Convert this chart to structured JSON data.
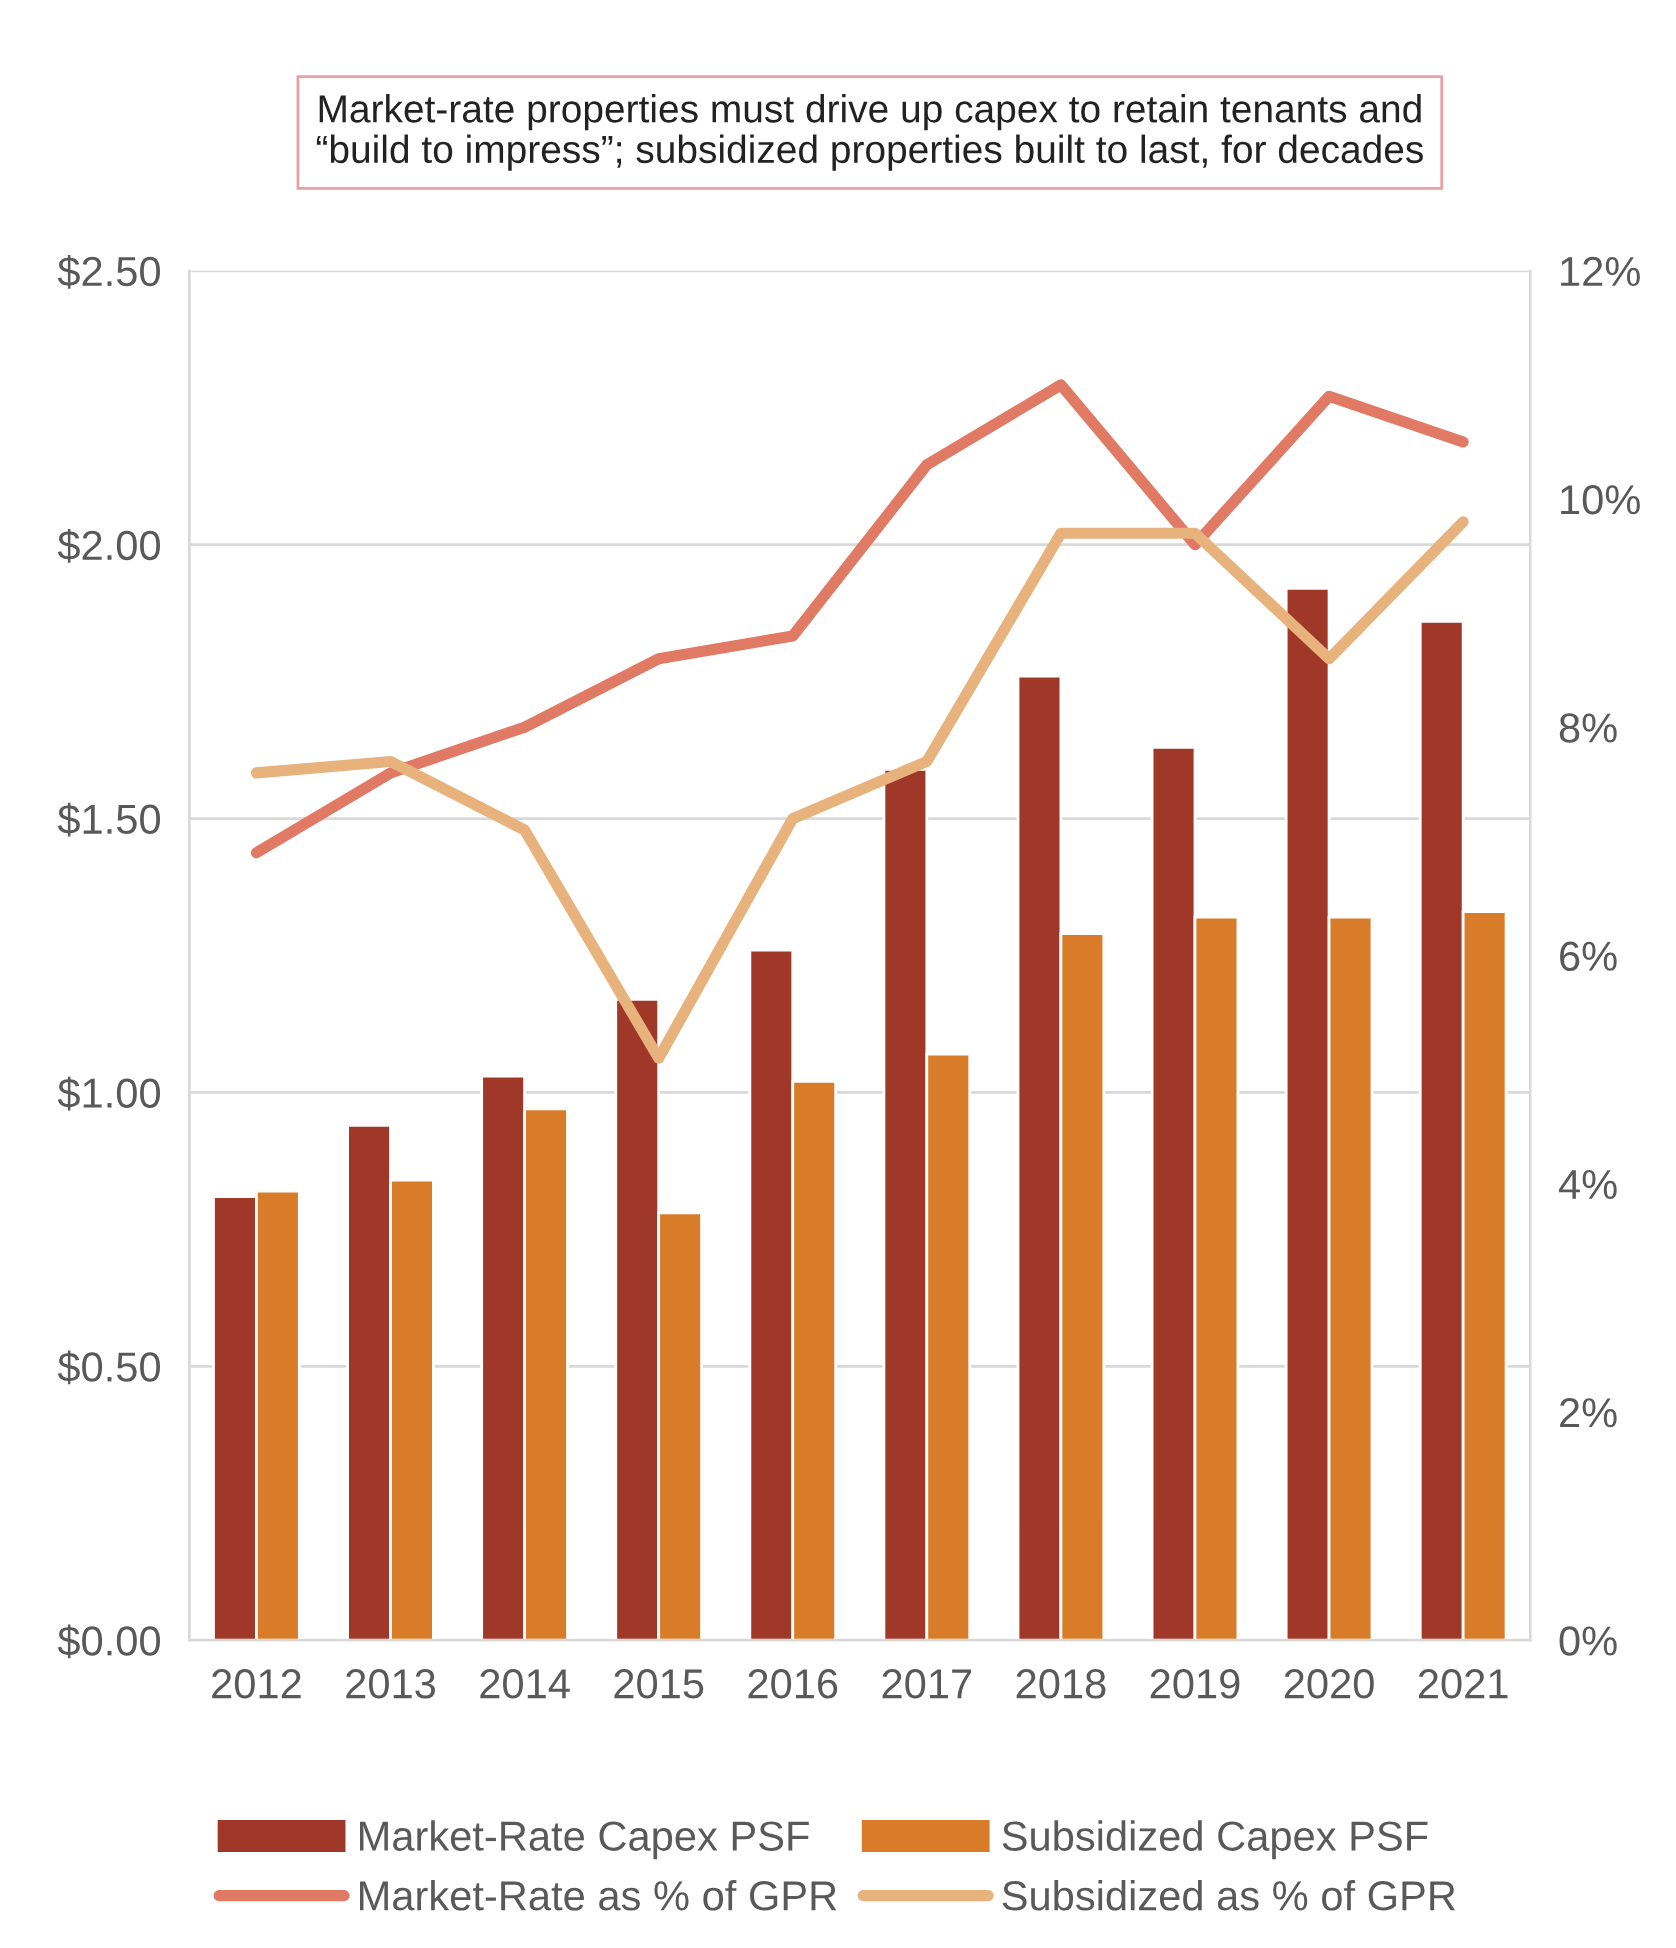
{
  "chart_data": {
    "type": "bar",
    "title": "Market-rate properties must drive up capex to retain tenants and “build to impress”; subsidized properties built to last, for decades",
    "categories": [
      "2012",
      "2013",
      "2014",
      "2015",
      "2016",
      "2017",
      "2018",
      "2019",
      "2020",
      "2021"
    ],
    "series": [
      {
        "name": "Market-Rate Capex PSF",
        "color": "#a0382a",
        "values": [
          0.81,
          0.94,
          1.03,
          1.17,
          1.26,
          1.59,
          1.76,
          1.63,
          1.92,
          1.86
        ]
      },
      {
        "name": "Subsidized Capex PSF",
        "color": "#d87c2a",
        "values": [
          0.82,
          0.84,
          0.97,
          0.78,
          1.02,
          1.07,
          1.29,
          1.32,
          1.32,
          1.33
        ]
      },
      {
        "name": "Market-Rate as % of GPR",
        "type": "line",
        "axis": "y2",
        "color": "#e07a64",
        "values": [
          6.9,
          7.6,
          8.0,
          8.6,
          8.8,
          10.3,
          11.0,
          9.6,
          10.9,
          10.5
        ]
      },
      {
        "name": "Subsidized as % of GPR",
        "type": "line",
        "axis": "y2",
        "color": "#e8b27c",
        "values": [
          7.6,
          7.7,
          7.1,
          5.1,
          7.2,
          7.7,
          9.7,
          9.7,
          8.6,
          9.8
        ]
      }
    ],
    "ylim": [
      0,
      2.5
    ],
    "yticks": [
      {
        "value": 0,
        "label": "$0.00"
      },
      {
        "value": 0.5,
        "label": "$0.50"
      },
      {
        "value": 1,
        "label": "$1.00"
      },
      {
        "value": 1.5,
        "label": "$1.50"
      },
      {
        "value": 2,
        "label": "$2.00"
      },
      {
        "value": 2.5,
        "label": "$2.50"
      }
    ],
    "y2lim": [
      0,
      12
    ],
    "y2ticks": [
      {
        "value": 0,
        "label": "0%"
      },
      {
        "value": 2,
        "label": "2%"
      },
      {
        "value": 4,
        "label": "4%"
      },
      {
        "value": 6,
        "label": "6%"
      },
      {
        "value": 8,
        "label": "8%"
      },
      {
        "value": 10,
        "label": "10%"
      },
      {
        "value": 12,
        "label": "12%"
      }
    ],
    "grid": "y",
    "legend": "bottom",
    "marker": "none",
    "line_style": "solid"
  }
}
